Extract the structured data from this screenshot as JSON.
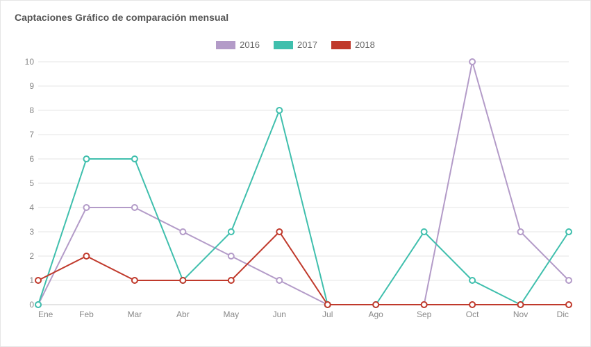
{
  "title": "Captaciones Gráfico de comparación mensual",
  "chart": {
    "type": "line",
    "categories": [
      "Ene",
      "Feb",
      "Mar",
      "Abr",
      "May",
      "Jun",
      "Jul",
      "Ago",
      "Sep",
      "Oct",
      "Nov",
      "Dic"
    ],
    "ylim": [
      0,
      10
    ],
    "ytick_step": 1,
    "series": [
      {
        "name": "2016",
        "color": "#b39bc8",
        "values": [
          0,
          4,
          4,
          3,
          2,
          1,
          0,
          0,
          0,
          10,
          3,
          1
        ]
      },
      {
        "name": "2017",
        "color": "#3fbfad",
        "values": [
          0,
          6,
          6,
          1,
          3,
          8,
          0,
          0,
          3,
          1,
          0,
          3
        ]
      },
      {
        "name": "2018",
        "color": "#c0392b",
        "values": [
          1,
          2,
          1,
          1,
          1,
          3,
          0,
          0,
          0,
          0,
          0,
          0
        ]
      }
    ],
    "grid_color": "#e6e6e6",
    "baseline_color": "#c8c8c8",
    "background_color": "#ffffff",
    "marker_radius": 4,
    "title_fontsize": 14,
    "tick_fontsize": 12,
    "legend_fontsize": 13
  }
}
